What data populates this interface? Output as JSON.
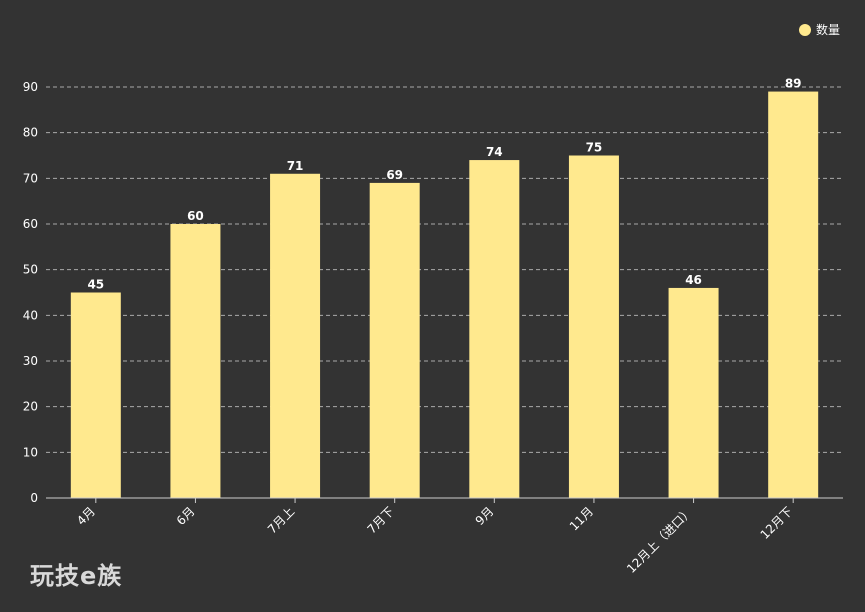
{
  "chart_data": {
    "type": "bar",
    "categories": [
      "4月",
      "6月",
      "7月上",
      "7月下",
      "9月",
      "11月",
      "12月上（进口）",
      "12月下"
    ],
    "series": [
      {
        "name": "数量",
        "values": [
          45,
          60,
          71,
          69,
          74,
          75,
          46,
          89
        ]
      }
    ],
    "ylim": [
      0,
      90
    ],
    "yticks": [
      0,
      10,
      20,
      30,
      40,
      50,
      60,
      70,
      80,
      90
    ],
    "grid": true,
    "grid_style": "dashed",
    "legend_position": "top-right",
    "bar_color": "#ffe98e",
    "background": "#333333",
    "text_color": "#ffffff",
    "grid_color": "#aaaaaa"
  },
  "legend": {
    "label": "数量"
  },
  "watermark": {
    "text": "玩技e族"
  }
}
